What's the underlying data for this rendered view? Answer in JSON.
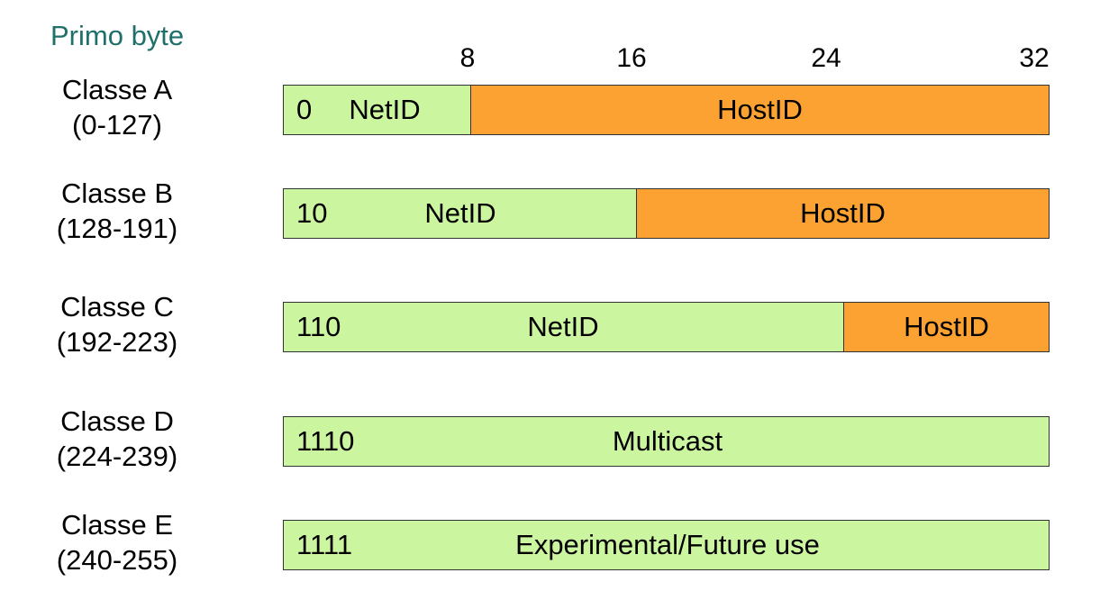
{
  "header": "Primo byte",
  "bit_marks": [
    "8",
    "16",
    "24",
    "32"
  ],
  "colors": {
    "net": "#ccf5a0",
    "host": "#fba233",
    "header": "#1f6f6a"
  },
  "classes": [
    {
      "name": "Classe A",
      "range": "(0-127)",
      "prefix": "0",
      "net_label": "NetID",
      "host_label": "HostID",
      "net_bits": 8
    },
    {
      "name": "Classe B",
      "range": "(128-191)",
      "prefix": "10",
      "net_label": "NetID",
      "host_label": "HostID",
      "net_bits": 16
    },
    {
      "name": "Classe C",
      "range": "(192-223)",
      "prefix": "110",
      "net_label": "NetID",
      "host_label": "HostID",
      "net_bits": 24
    },
    {
      "name": "Classe D",
      "range": "(224-239)",
      "prefix": "1110",
      "net_label": "Multicast",
      "host_label": "",
      "net_bits": 32
    },
    {
      "name": "Classe E",
      "range": "(240-255)",
      "prefix": "1111",
      "net_label": "Experimental/Future use",
      "host_label": "",
      "net_bits": 32
    }
  ]
}
